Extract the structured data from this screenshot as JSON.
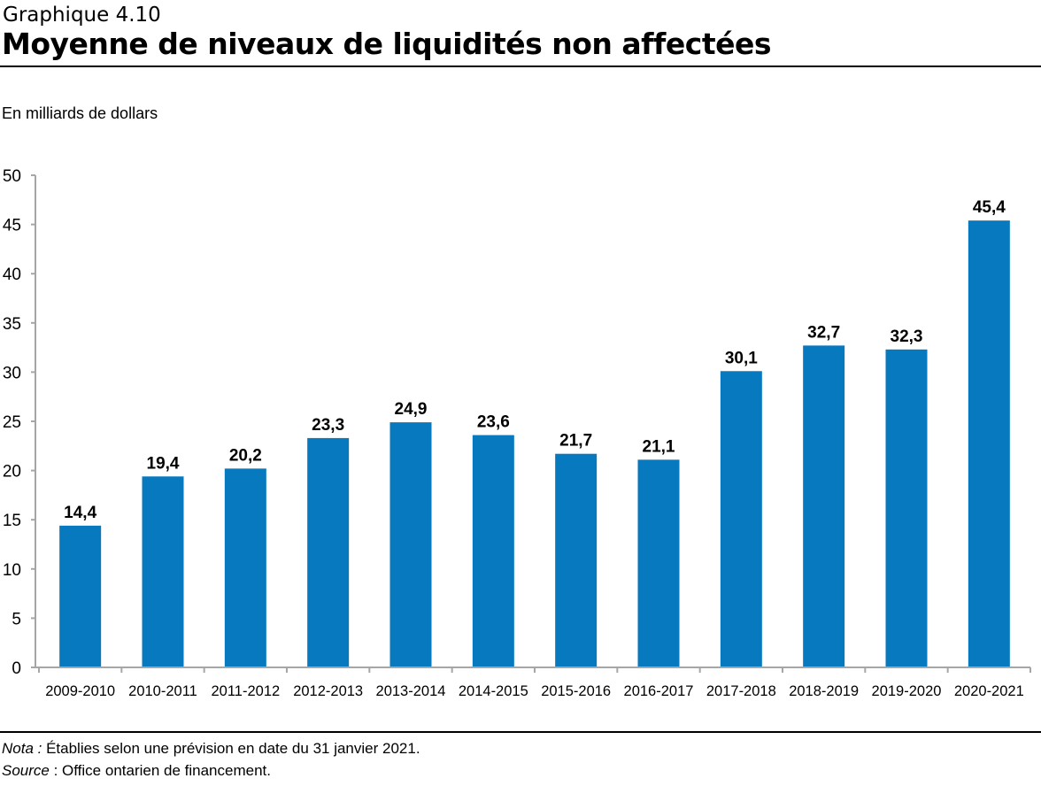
{
  "header": {
    "kicker": "Graphique 4.10",
    "title": "Moyenne de niveaux de liquidités non affectées"
  },
  "footer": {
    "note_label": "Nota :",
    "note_text": " Établies selon une prévision en date du 31 janvier 2021.",
    "source_label": "Source",
    "source_text": " :  Office ontarien de financement."
  },
  "chart_data": {
    "type": "bar",
    "title": "Moyenne de niveaux de liquidités non affectées",
    "ylabel": "En milliards de dollars",
    "xlabel": "",
    "categories": [
      "2009-2010",
      "2010-2011",
      "2011-2012",
      "2012-2013",
      "2013-2014",
      "2014-2015",
      "2015-2016",
      "2016-2017",
      "2017-2018",
      "2018-2019",
      "2019-2020",
      "2020-2021"
    ],
    "values": [
      14.4,
      19.4,
      20.2,
      23.3,
      24.9,
      23.6,
      21.7,
      21.1,
      30.1,
      32.7,
      32.3,
      45.4
    ],
    "data_labels": [
      "14,4",
      "19,4",
      "20,2",
      "23,3",
      "24,9",
      "23,6",
      "21,7",
      "21,1",
      "30,1",
      "32,7",
      "32,3",
      "45,4"
    ],
    "ylim": [
      0,
      50
    ],
    "yticks": [
      0,
      5,
      10,
      15,
      20,
      25,
      30,
      35,
      40,
      45,
      50
    ],
    "grid": false,
    "legend": "none",
    "bar_color": "#0779bf"
  }
}
